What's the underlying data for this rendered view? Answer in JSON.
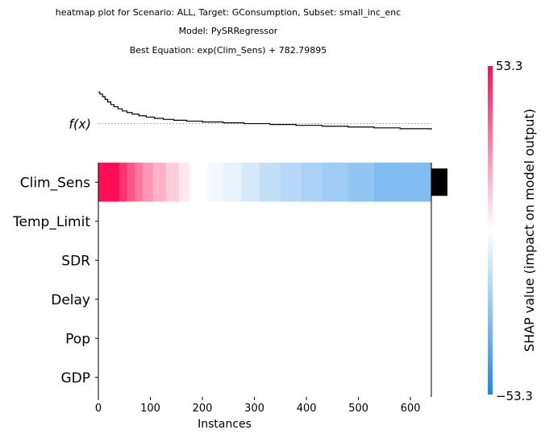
{
  "titles": {
    "line1": "heatmap plot for Scenario: ALL, Target: GConsumption, Subset: small_inc_enc",
    "line2": "Model: PySRRegressor",
    "line3": "Best Equation: exp(Clim_Sens) + 782.79895"
  },
  "chart_data": {
    "type": "heatmap",
    "features": [
      "Clim_Sens",
      "Temp_Limit",
      "SDR",
      "Delay",
      "Pop",
      "GDP"
    ],
    "xlabel": "Instances",
    "xlim": [
      0,
      640
    ],
    "xticks": [
      0,
      100,
      200,
      300,
      400,
      500,
      600
    ],
    "fx_label": "f(x)",
    "colorbar": {
      "max_label": "53.3",
      "min_label": "−53.3",
      "label": "SHAP value (impact on model output)",
      "range": [
        -53.3,
        53.3
      ],
      "high_color": "#ff0d57",
      "low_color": "#1e88e5"
    },
    "clim_sens_shap": [
      {
        "start": 0,
        "end": 40,
        "value": 53.3
      },
      {
        "start": 40,
        "end": 55,
        "value": 45
      },
      {
        "start": 55,
        "end": 70,
        "value": 37
      },
      {
        "start": 70,
        "end": 85,
        "value": 30
      },
      {
        "start": 85,
        "end": 105,
        "value": 23
      },
      {
        "start": 105,
        "end": 130,
        "value": 17
      },
      {
        "start": 130,
        "end": 155,
        "value": 11
      },
      {
        "start": 155,
        "end": 175,
        "value": 5
      },
      {
        "start": 175,
        "end": 210,
        "value": 0
      },
      {
        "start": 210,
        "end": 240,
        "value": -3
      },
      {
        "start": 240,
        "end": 275,
        "value": -6
      },
      {
        "start": 275,
        "end": 310,
        "value": -10
      },
      {
        "start": 310,
        "end": 350,
        "value": -14
      },
      {
        "start": 350,
        "end": 390,
        "value": -17
      },
      {
        "start": 390,
        "end": 430,
        "value": -20
      },
      {
        "start": 430,
        "end": 480,
        "value": -23
      },
      {
        "start": 480,
        "end": 530,
        "value": -26
      },
      {
        "start": 530,
        "end": 640,
        "value": -30
      }
    ],
    "fx_curve": [
      [
        0,
        782.8
      ],
      [
        3,
        781.0
      ],
      [
        8,
        778.5
      ],
      [
        13,
        776.0
      ],
      [
        18,
        773.5
      ],
      [
        24,
        771.0
      ],
      [
        30,
        769.0
      ],
      [
        38,
        767.0
      ],
      [
        46,
        765.0
      ],
      [
        55,
        763.5
      ],
      [
        65,
        762.0
      ],
      [
        78,
        760.5
      ],
      [
        92,
        759.2
      ],
      [
        108,
        758.0
      ],
      [
        125,
        757.0
      ],
      [
        145,
        756.2
      ],
      [
        170,
        755.4
      ],
      [
        200,
        754.6
      ],
      [
        240,
        753.8
      ],
      [
        280,
        753.0
      ],
      [
        330,
        752.2
      ],
      [
        380,
        751.4
      ],
      [
        430,
        750.6
      ],
      [
        480,
        749.8
      ],
      [
        530,
        749.0
      ],
      [
        580,
        748.2
      ],
      [
        640,
        747.4
      ]
    ],
    "fx_baseline": 753.0,
    "fx_ylim": [
      742,
      790
    ],
    "feature_importance": [
      1.0,
      0,
      0,
      0,
      0,
      0
    ]
  }
}
